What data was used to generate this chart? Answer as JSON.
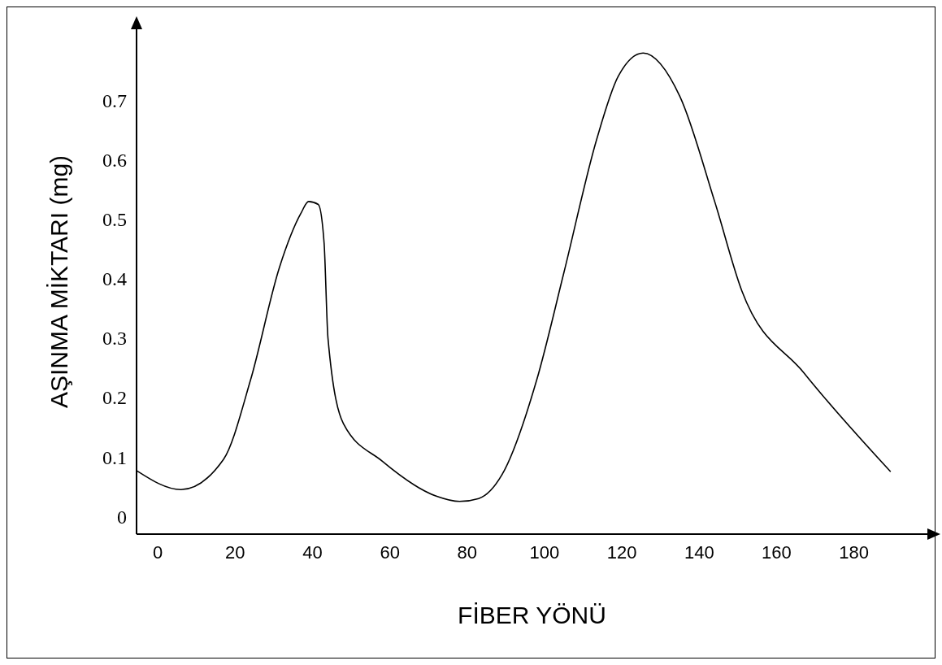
{
  "chart_data": {
    "type": "line",
    "xlabel": "FİBER YÖNÜ",
    "ylabel": "AŞINMA MİKTARI (mg)",
    "xlim": [
      -5.5,
      199
    ],
    "xticks": [
      0,
      20,
      40,
      60,
      80,
      100,
      120,
      140,
      160,
      180
    ],
    "ylim": [
      -0.03,
      0.82
    ],
    "yticks": [
      0,
      0.1,
      0.2,
      0.3,
      0.4,
      0.5,
      0.6,
      0.7
    ],
    "marker": "none",
    "line_style": "solid",
    "series": [
      {
        "color": "#000000",
        "x": [
          -5.5,
          6,
          17,
          24,
          31.5,
          37,
          39,
          41.5,
          43,
          44,
          48,
          58,
          72,
          78,
          83,
          89,
          98,
          105,
          113.5,
          119,
          125.5,
          135,
          144,
          151,
          167,
          189.5
        ],
        "values": [
          0.077,
          0.045,
          0.096,
          0.23,
          0.42,
          0.51,
          0.53,
          0.525,
          0.46,
          0.3,
          0.156,
          0.093,
          0.034,
          0.025,
          0.03,
          0.07,
          0.23,
          0.41,
          0.635,
          0.74,
          0.78,
          0.707,
          0.53,
          0.38,
          0.242,
          0.075
        ]
      }
    ]
  }
}
